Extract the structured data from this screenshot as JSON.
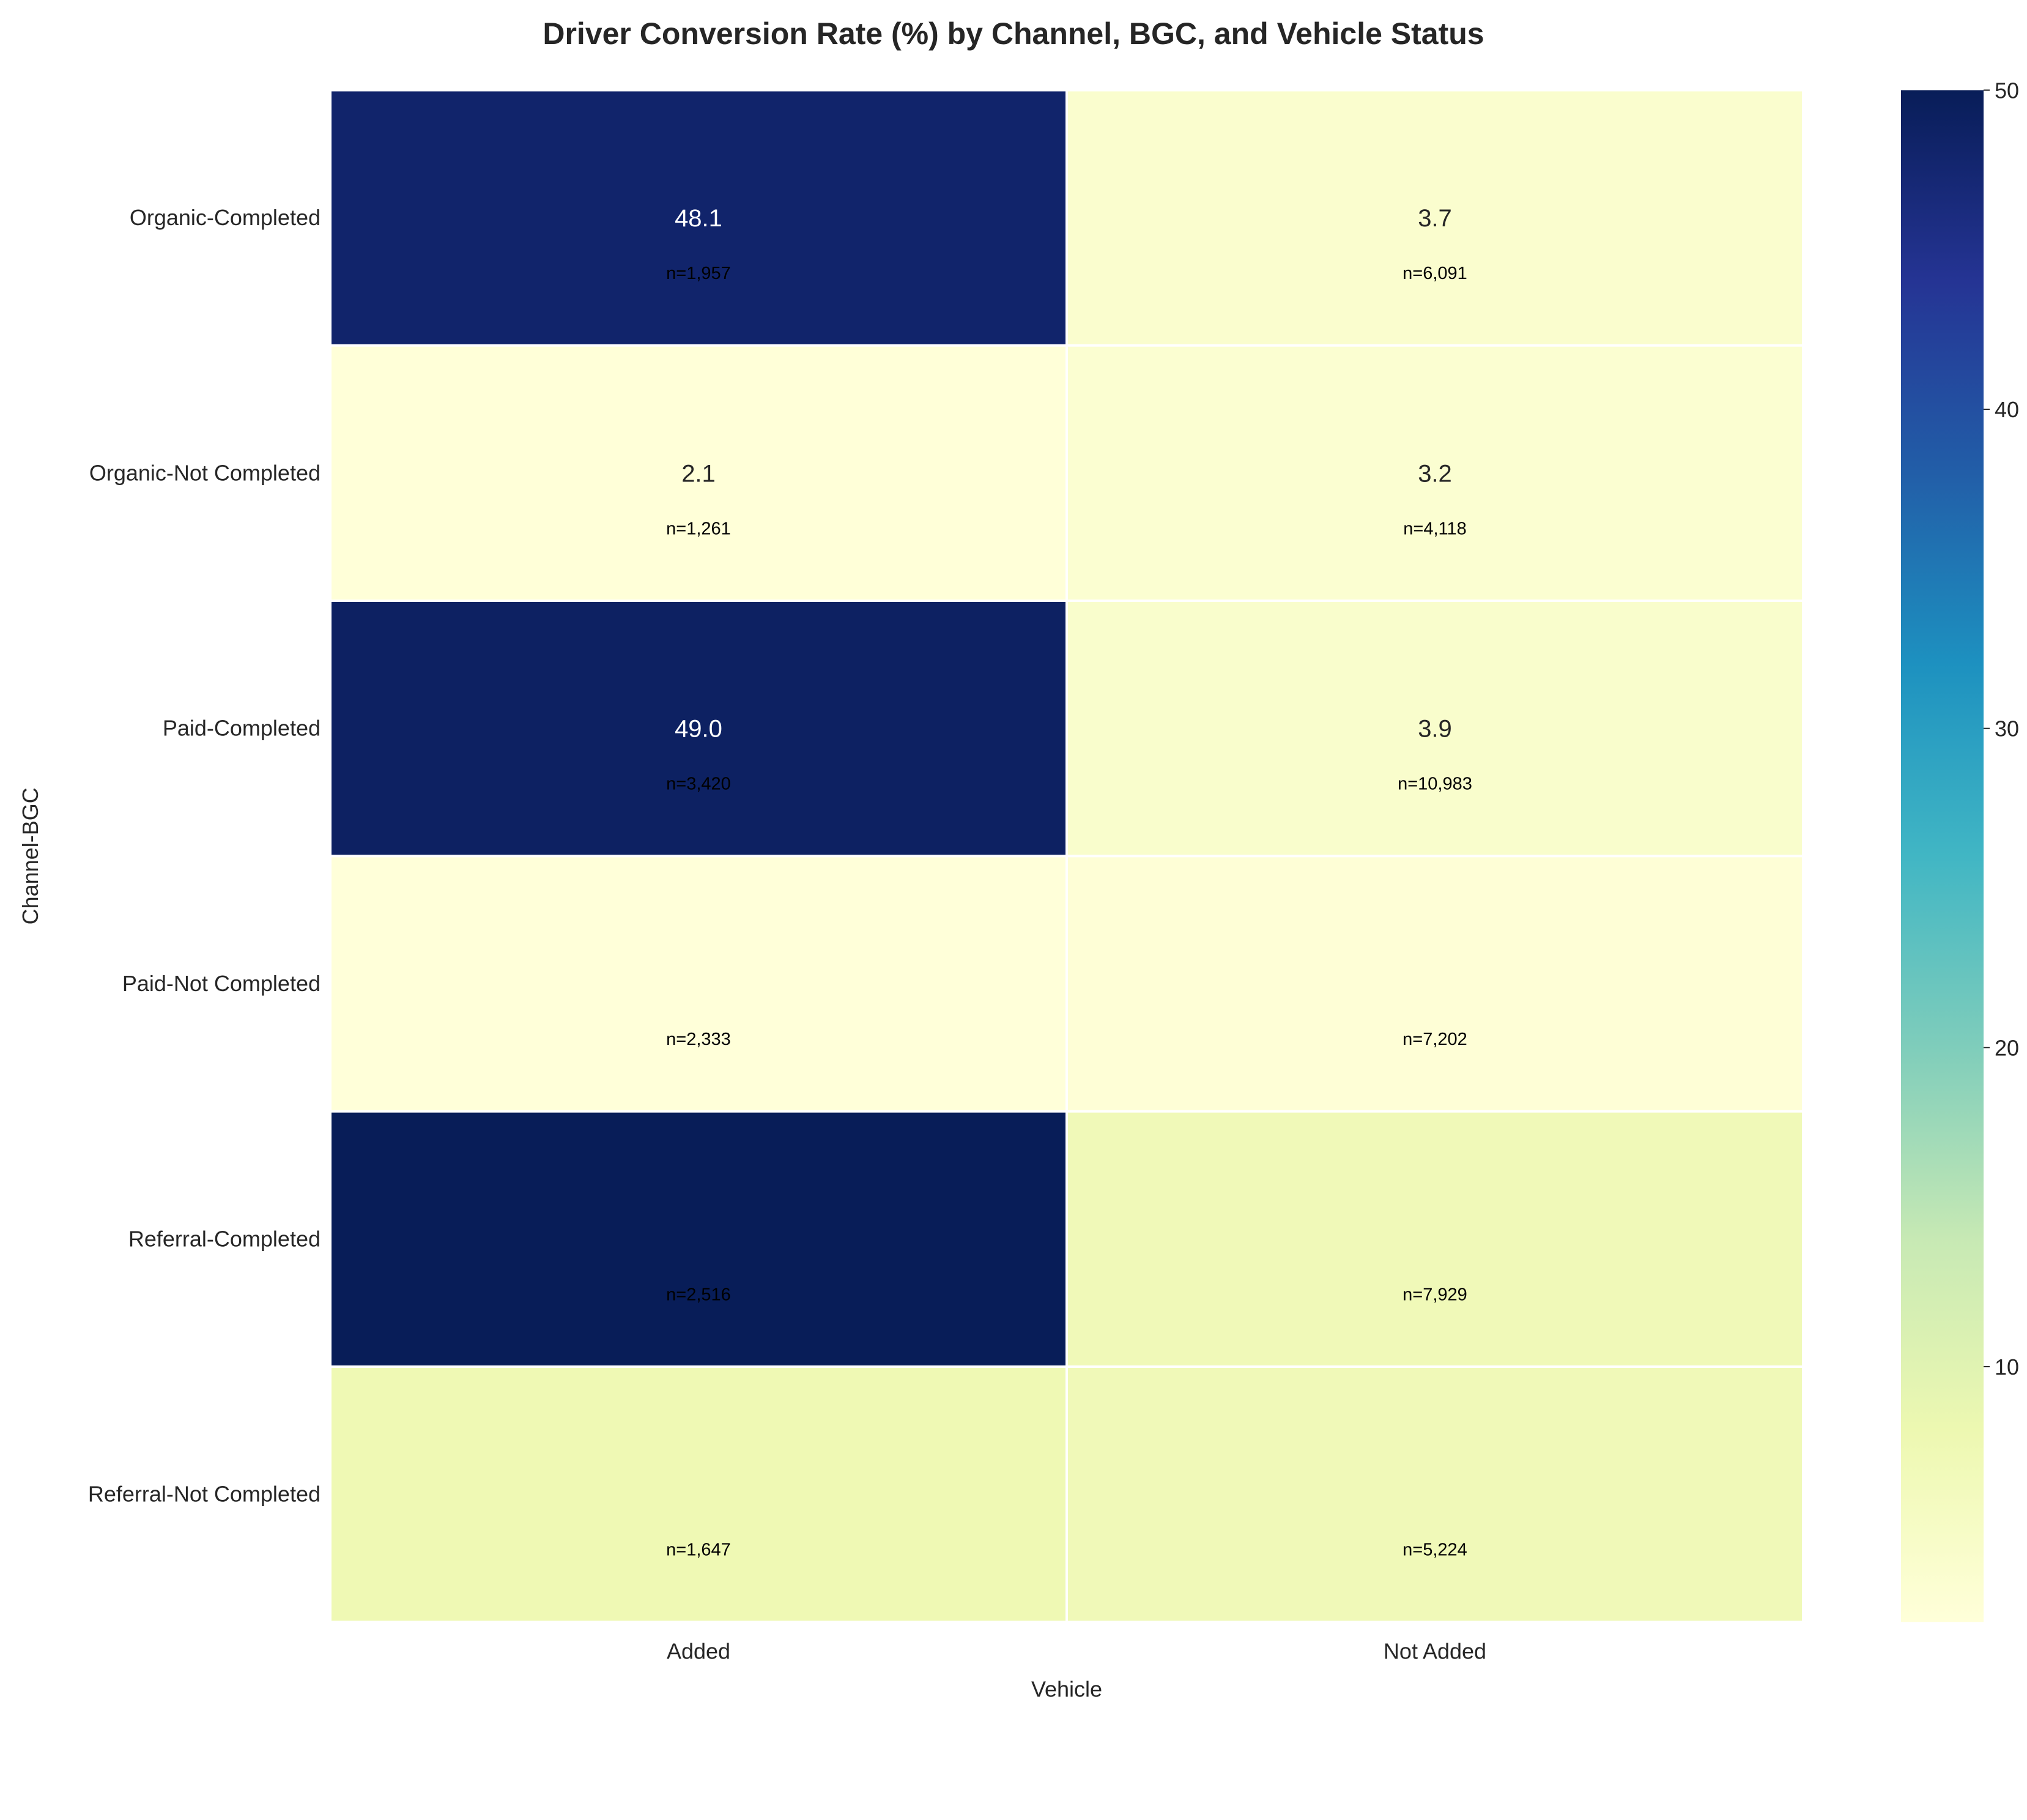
{
  "chart_data": {
    "type": "heatmap",
    "title": "Driver Conversion Rate (%) by Channel, BGC, and Vehicle Status",
    "xlabel": "Vehicle",
    "ylabel": "Channel-BGC",
    "columns": [
      "Added",
      "Not Added"
    ],
    "rows": [
      "Organic-Completed",
      "Organic-Not Completed",
      "Paid-Completed",
      "Paid-Not Completed",
      "Referral-Completed",
      "Referral-Not Completed"
    ],
    "values": [
      [
        48.1,
        3.7
      ],
      [
        2.1,
        3.2
      ],
      [
        49.0,
        3.9
      ],
      [
        2.0,
        2.5
      ],
      [
        50.5,
        7.0
      ],
      [
        7.5,
        7.0
      ]
    ],
    "value_labels": [
      [
        "48.1",
        "3.7"
      ],
      [
        "2.1",
        "3.2"
      ],
      [
        "49.0",
        "3.9"
      ],
      [
        "",
        ""
      ],
      [
        "",
        ""
      ],
      [
        "",
        ""
      ]
    ],
    "count_labels": [
      [
        "n=1,957",
        "n=6,091"
      ],
      [
        "n=1,261",
        "n=4,118"
      ],
      [
        "n=3,420",
        "n=10,983"
      ],
      [
        "n=2,333",
        "n=7,202"
      ],
      [
        "n=2,516",
        "n=7,929"
      ],
      [
        "n=1,647",
        "n=5,224"
      ]
    ],
    "colorbar": {
      "colormap": "YlGnBu",
      "range": [
        2.0,
        50
      ],
      "ticks": [
        "10",
        "20",
        "30",
        "40",
        "50"
      ]
    },
    "grid": false
  }
}
